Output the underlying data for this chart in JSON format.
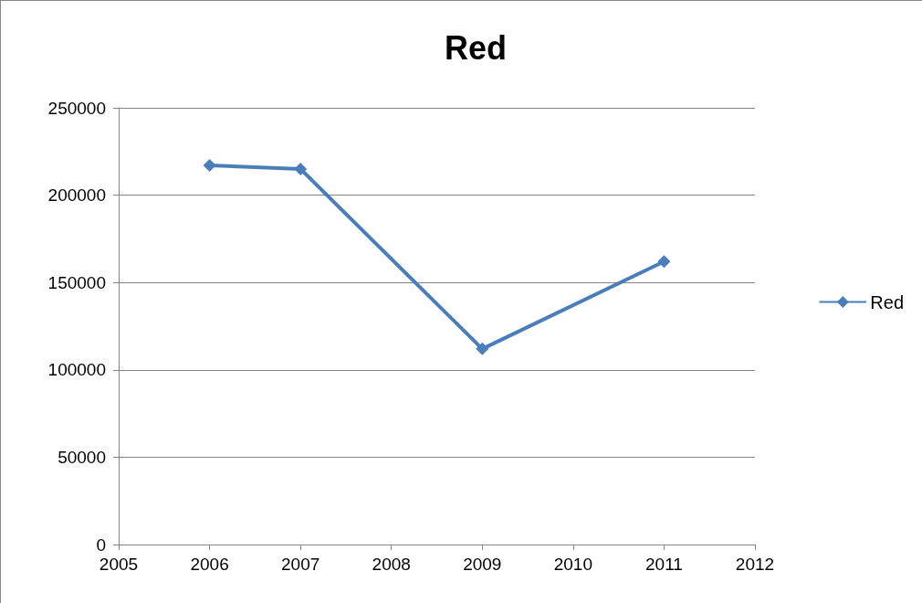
{
  "chart_data": {
    "type": "line",
    "title": "Red",
    "x": [
      2006,
      2007,
      2009,
      2011
    ],
    "series": [
      {
        "name": "Red",
        "color": "#4a7ebb",
        "values": [
          217000,
          215000,
          112000,
          162000
        ]
      }
    ],
    "xlim": [
      2005,
      2012
    ],
    "xticks": [
      2005,
      2006,
      2007,
      2008,
      2009,
      2010,
      2011,
      2012
    ],
    "ylim": [
      0,
      250000
    ],
    "yticks": [
      0,
      50000,
      100000,
      150000,
      200000,
      250000
    ],
    "grid": "y",
    "legend": "right",
    "marker": "diamond",
    "line_style": "solid"
  }
}
